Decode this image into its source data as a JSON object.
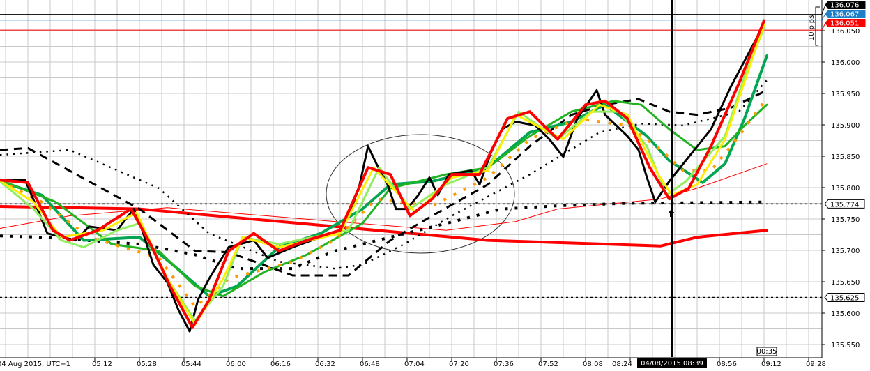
{
  "chart_data": {
    "type": "line",
    "title": "",
    "xlabel": "",
    "ylabel": "",
    "date_label": "04 Aug 2015, UTC+1",
    "ylim": [
      135.535,
      136.095
    ],
    "xlim": [
      "04:38",
      "09:45"
    ],
    "grid": true,
    "y_ticks": [
      "135.550",
      "135.600",
      "135.650",
      "135.700",
      "135.750",
      "135.800",
      "135.850",
      "135.900",
      "135.950",
      "136.000",
      "136.050"
    ],
    "x_ticks": [
      "05:12",
      "05:28",
      "05:44",
      "06:00",
      "06:16",
      "06:32",
      "06:48",
      "07:04",
      "07:20",
      "07:36",
      "07:52",
      "08:08",
      "08:24",
      "08:56",
      "09:12",
      "09:28"
    ],
    "crosshair": {
      "label": "04/08/2015 08:39",
      "time": "08:39"
    },
    "bar_timer": "00:35",
    "ruler_label": "10 pips",
    "price_labels": [
      {
        "value": "136.076",
        "price": 136.076,
        "color": "#000000"
      },
      {
        "value": "136.067",
        "price": 136.067,
        "color": "#1e7fc8"
      },
      {
        "value": "136.051",
        "price": 136.051,
        "color": "#ff0000"
      }
    ],
    "level_labels": [
      {
        "value": "135.774",
        "price": 135.774
      },
      {
        "value": "135.625",
        "price": 135.625
      }
    ],
    "series": [
      {
        "color": "#ff0000",
        "style": "thick-line",
        "points": [
          [
            "04:38",
            135.77
          ],
          [
            "05:28",
            135.766
          ],
          [
            "06:38",
            135.738
          ],
          [
            "07:33",
            135.716
          ],
          [
            "08:35",
            135.707
          ],
          [
            "08:48",
            135.721
          ],
          [
            "09:13",
            135.732
          ]
        ]
      },
      {
        "color": "#ff0000",
        "style": "thin-line",
        "points": [
          [
            "04:38",
            135.735
          ],
          [
            "05:03",
            135.755
          ],
          [
            "05:38",
            135.768
          ],
          [
            "06:38",
            135.746
          ],
          [
            "07:18",
            135.732
          ],
          [
            "07:43",
            135.746
          ],
          [
            "07:58",
            135.766
          ],
          [
            "08:35",
            135.782
          ],
          [
            "08:48",
            135.799
          ],
          [
            "09:13",
            135.838
          ]
        ]
      },
      {
        "color": "#000000",
        "style": "square-dots",
        "points": [
          [
            "04:38",
            135.723
          ],
          [
            "04:53",
            135.721
          ],
          [
            "05:28",
            135.71
          ],
          [
            "05:48",
            135.693
          ],
          [
            "06:03",
            135.671
          ],
          [
            "06:23",
            135.671
          ],
          [
            "06:38",
            135.699
          ],
          [
            "06:58",
            135.721
          ],
          [
            "07:18",
            135.743
          ],
          [
            "07:38",
            135.766
          ],
          [
            "07:58",
            135.771
          ],
          [
            "08:23",
            135.775
          ],
          [
            "09:13",
            135.777
          ]
        ]
      },
      {
        "color": "#000000",
        "style": "long-dash",
        "points": [
          [
            "04:38",
            135.86
          ],
          [
            "04:48",
            135.863
          ],
          [
            "05:28",
            135.766
          ],
          [
            "05:48",
            135.699
          ],
          [
            "06:00",
            135.697
          ],
          [
            "06:23",
            135.66
          ],
          [
            "06:43",
            135.66
          ],
          [
            "06:58",
            135.716
          ],
          [
            "07:13",
            135.755
          ],
          [
            "07:33",
            135.805
          ],
          [
            "07:48",
            135.866
          ],
          [
            "08:03",
            135.916
          ],
          [
            "08:15",
            135.932
          ],
          [
            "08:27",
            135.941
          ],
          [
            "08:38",
            135.921
          ],
          [
            "08:48",
            135.916
          ],
          [
            "09:00",
            135.927
          ],
          [
            "09:13",
            135.955
          ]
        ]
      },
      {
        "color": "#000000",
        "style": "small-dots",
        "points": [
          [
            "04:38",
            135.852
          ],
          [
            "05:03",
            135.86
          ],
          [
            "05:35",
            135.799
          ],
          [
            "05:53",
            135.727
          ],
          [
            "06:18",
            135.682
          ],
          [
            "06:38",
            135.671
          ],
          [
            "06:48",
            135.677
          ],
          [
            "07:03",
            135.71
          ],
          [
            "07:20",
            135.755
          ],
          [
            "07:48",
            135.821
          ],
          [
            "08:13",
            135.888
          ],
          [
            "08:28",
            135.902
          ],
          [
            "08:43",
            135.899
          ],
          [
            "09:03",
            135.921
          ],
          [
            "09:13",
            135.971
          ]
        ]
      },
      {
        "color": "#00a651",
        "style": "thick-line",
        "points": [
          [
            "04:38",
            135.81
          ],
          [
            "04:53",
            135.788
          ],
          [
            "05:08",
            135.716
          ],
          [
            "05:28",
            135.721
          ],
          [
            "05:40",
            135.677
          ],
          [
            "05:53",
            135.627
          ],
          [
            "06:03",
            135.643
          ],
          [
            "06:18",
            135.705
          ],
          [
            "06:33",
            135.727
          ],
          [
            "06:48",
            135.766
          ],
          [
            "06:58",
            135.805
          ],
          [
            "07:13",
            135.81
          ],
          [
            "07:33",
            135.832
          ],
          [
            "07:48",
            135.888
          ],
          [
            "08:03",
            135.905
          ],
          [
            "08:15",
            135.932
          ],
          [
            "08:30",
            135.882
          ],
          [
            "08:38",
            135.843
          ],
          [
            "08:50",
            135.808
          ],
          [
            "08:58",
            135.838
          ],
          [
            "09:05",
            135.91
          ],
          [
            "09:13",
            136.01
          ]
        ]
      },
      {
        "color": "#22b322",
        "style": "medium-line",
        "points": [
          [
            "04:38",
            135.812
          ],
          [
            "04:58",
            135.777
          ],
          [
            "05:18",
            135.71
          ],
          [
            "05:35",
            135.699
          ],
          [
            "05:48",
            135.643
          ],
          [
            "05:58",
            135.627
          ],
          [
            "06:13",
            135.666
          ],
          [
            "06:28",
            135.693
          ],
          [
            "06:48",
            135.743
          ],
          [
            "06:58",
            135.799
          ],
          [
            "07:18",
            135.821
          ],
          [
            "07:33",
            135.832
          ],
          [
            "07:48",
            135.882
          ],
          [
            "08:03",
            135.921
          ],
          [
            "08:18",
            135.938
          ],
          [
            "08:28",
            135.932
          ],
          [
            "08:38",
            135.893
          ],
          [
            "08:48",
            135.86
          ],
          [
            "08:58",
            135.866
          ],
          [
            "09:05",
            135.899
          ],
          [
            "09:13",
            135.932
          ]
        ]
      },
      {
        "color": "#ff9900",
        "style": "orange-dots",
        "points": [
          [
            "04:38",
            135.81
          ],
          [
            "04:53",
            135.777
          ],
          [
            "05:10",
            135.721
          ],
          [
            "05:35",
            135.688
          ],
          [
            "05:48",
            135.61
          ],
          [
            "06:00",
            135.655
          ],
          [
            "06:23",
            135.682
          ],
          [
            "06:38",
            135.716
          ],
          [
            "06:53",
            135.782
          ],
          [
            "07:13",
            135.771
          ],
          [
            "07:33",
            135.816
          ],
          [
            "07:48",
            135.877
          ],
          [
            "08:05",
            135.91
          ],
          [
            "08:23",
            135.899
          ],
          [
            "08:35",
            135.86
          ],
          [
            "08:43",
            135.827
          ],
          [
            "08:53",
            135.827
          ],
          [
            "09:03",
            135.882
          ],
          [
            "09:13",
            135.943
          ]
        ]
      },
      {
        "color": "#000000",
        "style": "price-line",
        "points": [
          [
            "04:38",
            135.812
          ],
          [
            "04:47",
            135.812
          ],
          [
            "04:52",
            135.76
          ],
          [
            "04:55",
            135.727
          ],
          [
            "05:05",
            135.716
          ],
          [
            "05:10",
            135.738
          ],
          [
            "05:20",
            135.732
          ],
          [
            "05:26",
            135.766
          ],
          [
            "05:29",
            135.732
          ],
          [
            "05:33",
            135.677
          ],
          [
            "05:38",
            135.649
          ],
          [
            "05:42",
            135.605
          ],
          [
            "05:46",
            135.571
          ],
          [
            "05:49",
            135.621
          ],
          [
            "05:53",
            135.655
          ],
          [
            "06:00",
            135.705
          ],
          [
            "06:09",
            135.716
          ],
          [
            "06:14",
            135.688
          ],
          [
            "06:23",
            135.705
          ],
          [
            "06:33",
            135.721
          ],
          [
            "06:40",
            135.727
          ],
          [
            "06:44",
            135.766
          ],
          [
            "06:47",
            135.805
          ],
          [
            "06:50",
            135.866
          ],
          [
            "06:53",
            135.838
          ],
          [
            "06:57",
            135.805
          ],
          [
            "07:00",
            135.766
          ],
          [
            "07:04",
            135.766
          ],
          [
            "07:08",
            135.788
          ],
          [
            "07:12",
            135.816
          ],
          [
            "07:15",
            135.788
          ],
          [
            "07:19",
            135.821
          ],
          [
            "07:27",
            135.827
          ],
          [
            "07:30",
            135.805
          ],
          [
            "07:34",
            135.855
          ],
          [
            "07:38",
            135.893
          ],
          [
            "07:43",
            135.905
          ],
          [
            "07:50",
            135.899
          ],
          [
            "07:55",
            135.877
          ],
          [
            "08:00",
            135.849
          ],
          [
            "08:05",
            135.91
          ],
          [
            "08:12",
            135.955
          ],
          [
            "08:15",
            135.916
          ],
          [
            "08:23",
            135.882
          ],
          [
            "08:27",
            135.86
          ],
          [
            "08:30",
            135.816
          ],
          [
            "08:33",
            135.777
          ],
          [
            "08:38",
            135.81
          ],
          [
            "08:45",
            135.849
          ],
          [
            "08:53",
            135.893
          ],
          [
            "09:00",
            135.96
          ],
          [
            "09:08",
            136.027
          ],
          [
            "09:12",
            136.06
          ]
        ]
      },
      {
        "color": "#90ee60",
        "style": "medium-line",
        "points": [
          [
            "04:38",
            135.81
          ],
          [
            "04:50",
            135.766
          ],
          [
            "05:00",
            135.716
          ],
          [
            "05:08",
            135.705
          ],
          [
            "05:20",
            135.732
          ],
          [
            "05:28",
            135.743
          ],
          [
            "05:38",
            135.655
          ],
          [
            "05:48",
            135.588
          ],
          [
            "05:58",
            135.643
          ],
          [
            "06:05",
            135.721
          ],
          [
            "06:18",
            135.71
          ],
          [
            "06:30",
            135.721
          ],
          [
            "06:43",
            135.732
          ],
          [
            "06:54",
            135.832
          ],
          [
            "07:05",
            135.766
          ],
          [
            "07:18",
            135.805
          ],
          [
            "07:33",
            135.832
          ],
          [
            "07:44",
            135.921
          ],
          [
            "07:58",
            135.877
          ],
          [
            "08:10",
            135.921
          ],
          [
            "08:20",
            135.921
          ],
          [
            "08:30",
            135.866
          ],
          [
            "08:37",
            135.788
          ],
          [
            "08:44",
            135.81
          ],
          [
            "08:58",
            135.882
          ],
          [
            "09:05",
            135.977
          ],
          [
            "09:12",
            136.055
          ]
        ]
      },
      {
        "color": "#ffee00",
        "style": "medium-line",
        "points": [
          [
            "04:38",
            135.811
          ],
          [
            "04:50",
            135.777
          ],
          [
            "05:00",
            135.721
          ],
          [
            "05:15",
            135.732
          ],
          [
            "05:27",
            135.76
          ],
          [
            "05:38",
            135.655
          ],
          [
            "05:48",
            135.582
          ],
          [
            "05:58",
            135.655
          ],
          [
            "06:05",
            135.721
          ],
          [
            "06:18",
            135.705
          ],
          [
            "06:40",
            135.727
          ],
          [
            "06:52",
            135.832
          ],
          [
            "07:07",
            135.76
          ],
          [
            "07:20",
            135.816
          ],
          [
            "07:33",
            135.827
          ],
          [
            "07:43",
            135.916
          ],
          [
            "08:00",
            135.877
          ],
          [
            "08:13",
            135.932
          ],
          [
            "08:23",
            135.916
          ],
          [
            "08:34",
            135.821
          ],
          [
            "08:39",
            135.788
          ],
          [
            "08:48",
            135.805
          ],
          [
            "08:58",
            135.877
          ],
          [
            "09:12",
            136.06
          ]
        ]
      },
      {
        "color": "#ff0000",
        "style": "fast-thick",
        "points": [
          [
            "04:38",
            135.812
          ],
          [
            "04:48",
            135.808
          ],
          [
            "04:57",
            135.732
          ],
          [
            "05:03",
            135.716
          ],
          [
            "05:13",
            135.732
          ],
          [
            "05:25",
            135.766
          ],
          [
            "05:32",
            135.71
          ],
          [
            "05:39",
            135.643
          ],
          [
            "05:47",
            135.577
          ],
          [
            "05:53",
            135.621
          ],
          [
            "06:00",
            135.699
          ],
          [
            "06:09",
            135.727
          ],
          [
            "06:18",
            135.699
          ],
          [
            "06:28",
            135.716
          ],
          [
            "06:40",
            135.732
          ],
          [
            "06:50",
            135.832
          ],
          [
            "06:58",
            135.821
          ],
          [
            "07:05",
            135.755
          ],
          [
            "07:13",
            135.782
          ],
          [
            "07:20",
            135.821
          ],
          [
            "07:30",
            135.821
          ],
          [
            "07:40",
            135.91
          ],
          [
            "07:48",
            135.921
          ],
          [
            "07:58",
            135.877
          ],
          [
            "08:08",
            135.932
          ],
          [
            "08:15",
            135.938
          ],
          [
            "08:23",
            135.91
          ],
          [
            "08:31",
            135.832
          ],
          [
            "08:38",
            135.782
          ],
          [
            "08:45",
            135.799
          ],
          [
            "08:53",
            135.866
          ],
          [
            "09:03",
            135.966
          ],
          [
            "09:12",
            136.066
          ]
        ]
      }
    ]
  }
}
